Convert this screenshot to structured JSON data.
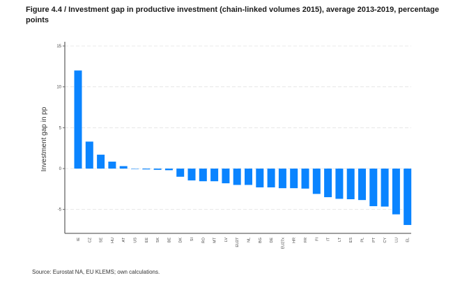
{
  "title": "Figure 4.4 / Investment gap in productive investment (chain-linked volumes 2015), average 2013-2019, percentage points",
  "source": "Source: Eurostat NA, EU KLEMS; own calculations.",
  "chart_data": {
    "type": "bar",
    "title": "Investment gap in productive investment (chain-linked volumes 2015), average 2013-2019, percentage points",
    "xlabel": "",
    "ylabel": "Investment gap in pp",
    "ylim": [
      -7.8,
      15.5
    ],
    "yticks": [
      15,
      10,
      5,
      0,
      -5
    ],
    "ytick_labels": [
      "15",
      "10",
      "5",
      "0",
      "-5"
    ],
    "grid": true,
    "bar_color": "#0a84ff",
    "categories": [
      "IE",
      "CZ",
      "SE",
      "HU",
      "AT",
      "US",
      "EE",
      "SK",
      "BE",
      "DK",
      "SI",
      "RO",
      "MT",
      "LV",
      "EU27",
      "NL",
      "BG",
      "DE",
      "EU27x",
      "HR",
      "FR",
      "FI",
      "IT",
      "LT",
      "ES",
      "PL",
      "PT",
      "CY",
      "LU",
      "EL"
    ],
    "values": [
      12.0,
      3.3,
      1.7,
      0.85,
      0.3,
      0.0,
      -0.1,
      -0.15,
      -0.2,
      -1.0,
      -1.45,
      -1.55,
      -1.55,
      -1.8,
      -2.0,
      -2.0,
      -2.3,
      -2.3,
      -2.4,
      -2.4,
      -2.45,
      -3.1,
      -3.5,
      -3.7,
      -3.75,
      -3.85,
      -4.6,
      -4.65,
      -5.6,
      -6.9
    ]
  }
}
